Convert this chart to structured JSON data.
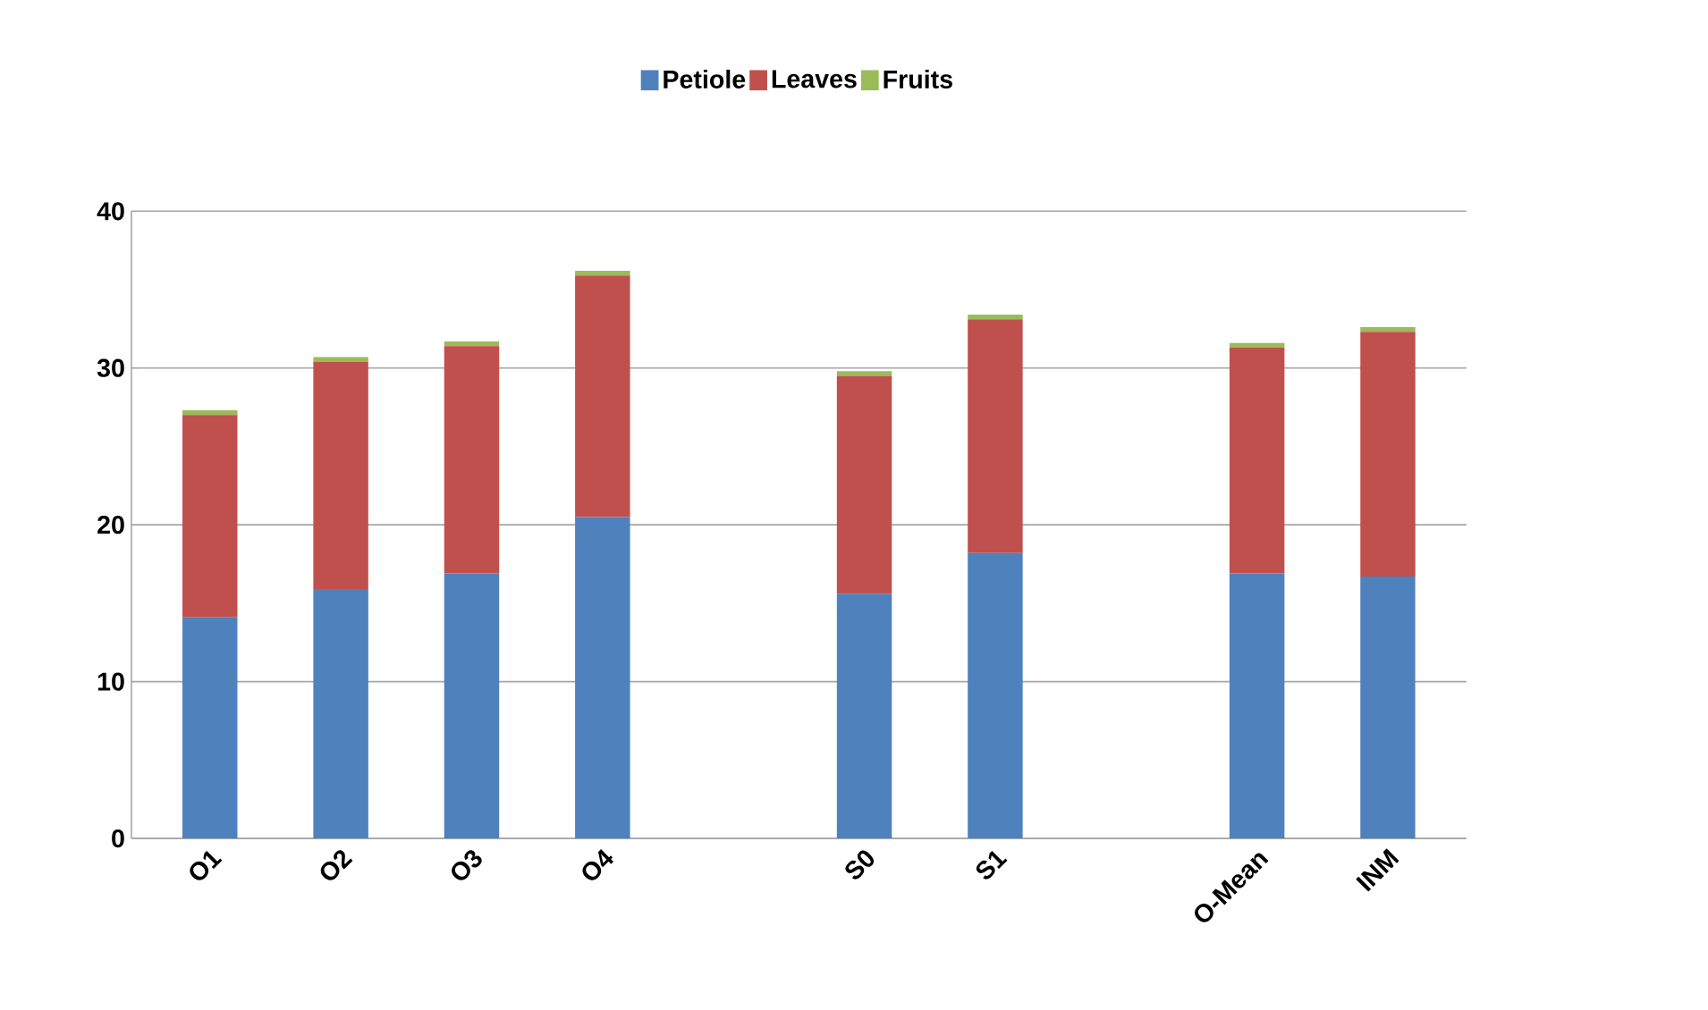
{
  "chart_data": {
    "type": "bar",
    "stacked": true,
    "categories": [
      "O1",
      "O2",
      "O3",
      "O4",
      null,
      "S0",
      "S1",
      null,
      "O-Mean",
      "INM"
    ],
    "series": [
      {
        "name": "Petiole",
        "color": "#4f81bd",
        "values": [
          14.1,
          15.9,
          16.9,
          20.5,
          null,
          15.6,
          18.2,
          null,
          16.9,
          16.7
        ]
      },
      {
        "name": "Leaves",
        "color": "#c0504d",
        "values": [
          12.9,
          14.5,
          14.5,
          15.4,
          null,
          13.9,
          14.9,
          null,
          14.4,
          15.6
        ]
      },
      {
        "name": "Fruits",
        "color": "#9bbb59",
        "values": [
          0.3,
          0.3,
          0.3,
          0.3,
          null,
          0.3,
          0.3,
          null,
          0.3,
          0.3
        ]
      }
    ],
    "ylim": [
      0,
      40
    ],
    "yticks": [
      0,
      10,
      20,
      30,
      40
    ],
    "grid": "y",
    "legend": "top"
  }
}
